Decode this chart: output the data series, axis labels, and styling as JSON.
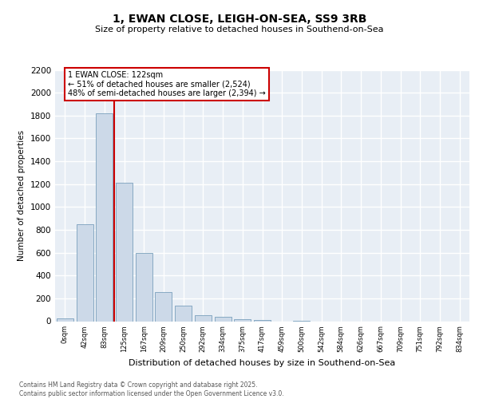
{
  "title_line1": "1, EWAN CLOSE, LEIGH-ON-SEA, SS9 3RB",
  "title_line2": "Size of property relative to detached houses in Southend-on-Sea",
  "xlabel": "Distribution of detached houses by size in Southend-on-Sea",
  "ylabel": "Number of detached properties",
  "bar_labels": [
    "0sqm",
    "42sqm",
    "83sqm",
    "125sqm",
    "167sqm",
    "209sqm",
    "250sqm",
    "292sqm",
    "334sqm",
    "375sqm",
    "417sqm",
    "459sqm",
    "500sqm",
    "542sqm",
    "584sqm",
    "626sqm",
    "667sqm",
    "709sqm",
    "751sqm",
    "792sqm",
    "834sqm"
  ],
  "bar_values": [
    25,
    850,
    1820,
    1210,
    600,
    255,
    135,
    55,
    35,
    20,
    10,
    0,
    5,
    0,
    0,
    0,
    0,
    0,
    0,
    0,
    0
  ],
  "bar_color": "#ccd9e8",
  "bar_edge_color": "#7aa0bc",
  "vline_x": 2.5,
  "vline_color": "#cc0000",
  "annotation_title": "1 EWAN CLOSE: 122sqm",
  "annotation_line1": "← 51% of detached houses are smaller (2,524)",
  "annotation_line2": "48% of semi-detached houses are larger (2,394) →",
  "annotation_box_color": "#cc0000",
  "ylim": [
    0,
    2200
  ],
  "yticks": [
    0,
    200,
    400,
    600,
    800,
    1000,
    1200,
    1400,
    1600,
    1800,
    2000,
    2200
  ],
  "background_color": "#e8eef5",
  "grid_color": "#ffffff",
  "footer_line1": "Contains HM Land Registry data © Crown copyright and database right 2025.",
  "footer_line2": "Contains public sector information licensed under the Open Government Licence v3.0."
}
